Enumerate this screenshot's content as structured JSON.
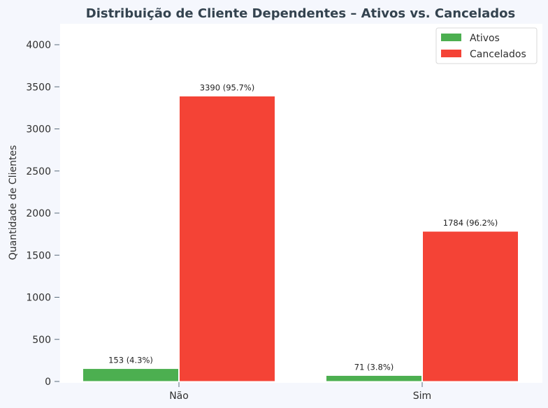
{
  "chart_data": {
    "type": "bar",
    "title": "Distribuição de Cliente Dependentes – Ativos vs. Cancelados",
    "xlabel": "",
    "ylabel": "Quantidade de Clientes",
    "categories": [
      "Não",
      "Sim"
    ],
    "series": [
      {
        "name": "Ativos",
        "color": "#4caf50",
        "values": [
          153,
          71
        ],
        "labels": [
          "153 (4.3%)",
          "71 (3.8%)"
        ]
      },
      {
        "name": "Cancelados",
        "color": "#f44336",
        "values": [
          3390,
          1784
        ],
        "labels": [
          "3390 (95.7%)",
          "1784 (96.2%)"
        ]
      }
    ],
    "ylim": [
      0,
      4250
    ],
    "yticks": [
      0,
      500,
      1000,
      1500,
      2000,
      2500,
      3000,
      3500,
      4000
    ],
    "grid": false,
    "legend_position": "top-right"
  }
}
